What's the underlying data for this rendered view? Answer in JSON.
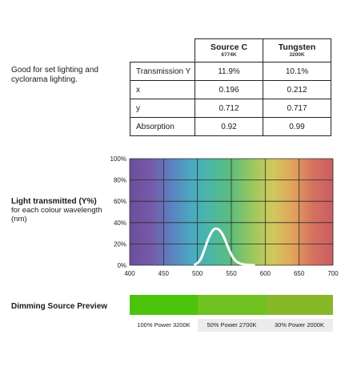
{
  "description": "Good for set lighting and cyclorama lighting.",
  "table": {
    "columns": [
      {
        "name": "Source C",
        "sub": "6774K"
      },
      {
        "name": "Tungsten",
        "sub": "3200K"
      }
    ],
    "rows": [
      {
        "label": "Transmission Y",
        "values": [
          "11.9%",
          "10.1%"
        ]
      },
      {
        "label": "x",
        "values": [
          "0.196",
          "0.212"
        ]
      },
      {
        "label": "y",
        "values": [
          "0.712",
          "0.717"
        ]
      },
      {
        "label": "Absorption",
        "values": [
          "0.92",
          "0.99"
        ]
      }
    ]
  },
  "chart_label": {
    "title": "Light transmitted (Y%)",
    "subtitle": "for each colour wavelength (nm)"
  },
  "chart_data": {
    "type": "line",
    "x": [
      495,
      500,
      505,
      510,
      515,
      520,
      525,
      530,
      535,
      540,
      545,
      550,
      555,
      560,
      565,
      570,
      575,
      580,
      585
    ],
    "y": [
      0,
      2,
      6,
      14,
      23,
      30,
      34,
      34,
      31,
      25,
      17,
      10,
      5,
      2.5,
      1.2,
      0.6,
      0.3,
      0.1,
      0
    ],
    "xlim": [
      400,
      700
    ],
    "ylim": [
      0,
      100
    ],
    "xticks": [
      "400",
      "450",
      "500",
      "550",
      "600",
      "650",
      "700"
    ],
    "yticks": [
      "0%",
      "20%",
      "40%",
      "60%",
      "80%",
      "100%"
    ],
    "grid": true,
    "line_color": "#ffffff",
    "background": "visible spectrum gradient"
  },
  "dimming": {
    "title": "Dimming Source Preview",
    "segments": [
      {
        "label": "100% Power 3200K",
        "color": "#4cc40c",
        "weight": 85
      },
      {
        "label": "50% Power 2700K",
        "color": "#6fc21f",
        "weight": 85
      },
      {
        "label": "30% Power 2000K",
        "color": "#87b82a",
        "weight": 84
      }
    ]
  }
}
